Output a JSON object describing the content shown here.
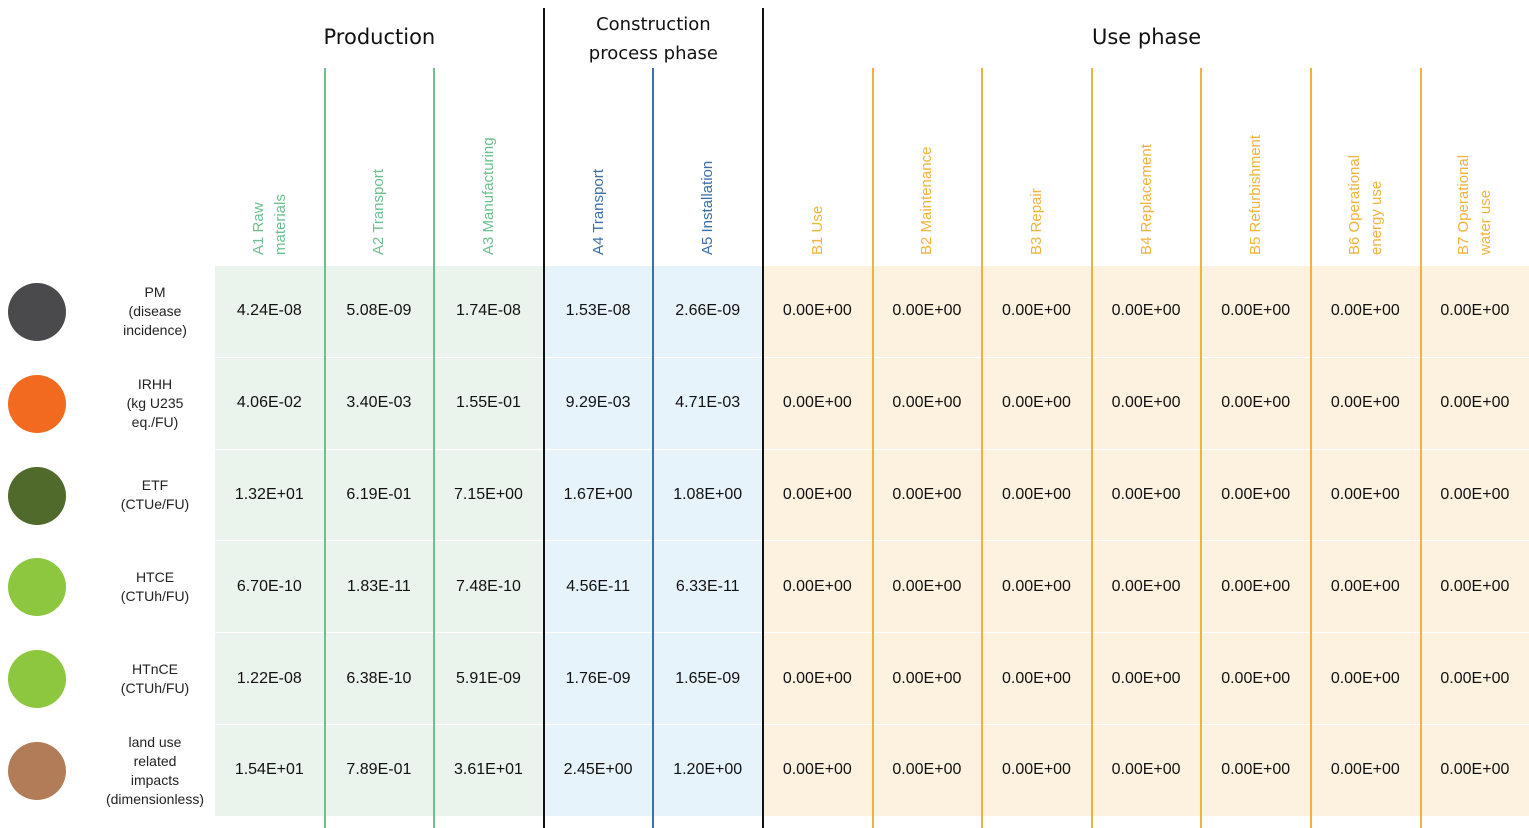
{
  "groups": [
    {
      "title": "Production",
      "color": "#6cc08e",
      "bg": "#eaf3ec",
      "columns": [
        [
          "A1 Raw",
          "materials"
        ],
        [
          "A2 Transport"
        ],
        [
          "A3 Manufacturing"
        ]
      ]
    },
    {
      "title": "Construction process phase",
      "color": "#3d6fa8",
      "bg": "#e6f3fb",
      "columns": [
        [
          "A4 Transport"
        ],
        [
          "A5 Installation"
        ]
      ]
    },
    {
      "title": "Use phase",
      "color": "#f2b33d",
      "bg": "#fdf1df",
      "columns": [
        [
          "B1 Use"
        ],
        [
          "B2 Maintenance"
        ],
        [
          "B3 Repair"
        ],
        [
          "B4 Replacement"
        ],
        [
          "B5 Refurbishment"
        ],
        [
          "B6 Operational",
          "energy use"
        ],
        [
          "B7 Operational",
          "water use"
        ]
      ]
    }
  ],
  "rows": [
    {
      "label": [
        "PM",
        "(disease",
        "incidence)"
      ],
      "icon": "#4a4a4c",
      "values": [
        "4.24E-08",
        "5.08E-09",
        "1.74E-08",
        "1.53E-08",
        "2.66E-09",
        "0.00E+00",
        "0.00E+00",
        "0.00E+00",
        "0.00E+00",
        "0.00E+00",
        "0.00E+00",
        "0.00E+00"
      ]
    },
    {
      "label": [
        "IRHH",
        "(kg U235",
        "eq./FU)"
      ],
      "icon": "#f26a1f",
      "values": [
        "4.06E-02",
        "3.40E-03",
        "1.55E-01",
        "9.29E-03",
        "4.71E-03",
        "0.00E+00",
        "0.00E+00",
        "0.00E+00",
        "0.00E+00",
        "0.00E+00",
        "0.00E+00",
        "0.00E+00"
      ]
    },
    {
      "label": [
        "ETF",
        "(CTUe/FU)"
      ],
      "icon": "#4f6a2a",
      "values": [
        "1.32E+01",
        "6.19E-01",
        "7.15E+00",
        "1.67E+00",
        "1.08E+00",
        "0.00E+00",
        "0.00E+00",
        "0.00E+00",
        "0.00E+00",
        "0.00E+00",
        "0.00E+00",
        "0.00E+00"
      ]
    },
    {
      "label": [
        "HTCE",
        "(CTUh/FU)"
      ],
      "icon": "#8dc63f",
      "values": [
        "6.70E-10",
        "1.83E-11",
        "7.48E-10",
        "4.56E-11",
        "6.33E-11",
        "0.00E+00",
        "0.00E+00",
        "0.00E+00",
        "0.00E+00",
        "0.00E+00",
        "0.00E+00",
        "0.00E+00"
      ]
    },
    {
      "label": [
        "HTnCE",
        "(CTUh/FU)"
      ],
      "icon": "#8dc63f",
      "values": [
        "1.22E-08",
        "6.38E-10",
        "5.91E-09",
        "1.76E-09",
        "1.65E-09",
        "0.00E+00",
        "0.00E+00",
        "0.00E+00",
        "0.00E+00",
        "0.00E+00",
        "0.00E+00",
        "0.00E+00"
      ]
    },
    {
      "label": [
        "land use",
        "related",
        "impacts",
        "(dimensionless)"
      ],
      "icon": "#b27c58",
      "values": [
        "1.54E+01",
        "7.89E-01",
        "3.61E+01",
        "2.45E+00",
        "1.20E+00",
        "0.00E+00",
        "0.00E+00",
        "0.00E+00",
        "0.00E+00",
        "0.00E+00",
        "0.00E+00",
        "0.00E+00"
      ]
    }
  ]
}
